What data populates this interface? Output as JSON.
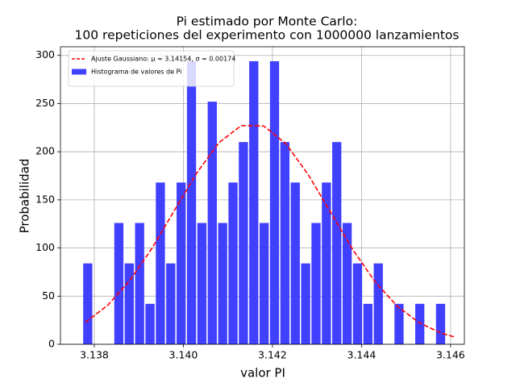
{
  "chart_data": {
    "type": "histogram",
    "title": [
      "Pi estimado por Monte Carlo:",
      "100 repeticiones del experimento con 1000000 lanzamientos"
    ],
    "xlabel": "valor PI",
    "ylabel": "Probabilidad",
    "xlim": [
      3.13724,
      3.14631
    ],
    "ylim": [
      0,
      309
    ],
    "xticks": [
      3.138,
      {
        "value": 3.14,
        "label": "3.140"
      },
      3.142,
      3.144,
      3.146
    ],
    "yticks": [
      0,
      50,
      100,
      150,
      200,
      250,
      300
    ],
    "grid": true,
    "legend": "upper left",
    "series": [
      {
        "name": "Ajuste Gaussiano: μ = 3.14154,  σ = 0.00174",
        "type": "line",
        "linestyle": "dashed",
        "color": "#ff0000",
        "x": [
          3.1378,
          3.1383,
          3.1388,
          3.1393,
          3.1398,
          3.1403,
          3.1408,
          3.1413,
          3.1418,
          3.1423,
          3.1428,
          3.1433,
          3.1438,
          3.1443,
          3.1448,
          3.1453,
          3.1458,
          3.1461
        ],
        "values": [
          22.8,
          40.5,
          66.4,
          100.1,
          139.1,
          177.9,
          209.5,
          227.1,
          226.8,
          208.4,
          176.4,
          137.6,
          98.6,
          65.2,
          39.6,
          22.2,
          11.4,
          7.4
        ]
      },
      {
        "name": "Histograma de valores de Pi",
        "type": "histogram",
        "color": "#4040ff",
        "bins": [
          3.13775,
          3.137983,
          3.138216,
          3.138449,
          3.138682,
          3.138915,
          3.139148,
          3.139381,
          3.139614,
          3.139847,
          3.14008,
          3.140313,
          3.140546,
          3.140779,
          3.141012,
          3.141245,
          3.141478,
          3.141711,
          3.141944,
          3.142177,
          3.14241,
          3.142643,
          3.142876,
          3.143109,
          3.143342,
          3.143575,
          3.143808,
          3.144041,
          3.144274,
          3.144507,
          3.14474,
          3.144973,
          3.145206,
          3.145439,
          3.145672,
          3.145905
        ],
        "values": [
          84,
          0,
          0,
          126,
          84,
          126,
          42,
          168,
          84,
          168,
          294,
          126,
          252,
          126,
          168,
          210,
          294,
          126,
          294,
          210,
          168,
          84,
          126,
          168,
          210,
          126,
          84,
          42,
          84,
          0,
          42,
          0,
          42,
          0,
          42
        ]
      }
    ]
  }
}
